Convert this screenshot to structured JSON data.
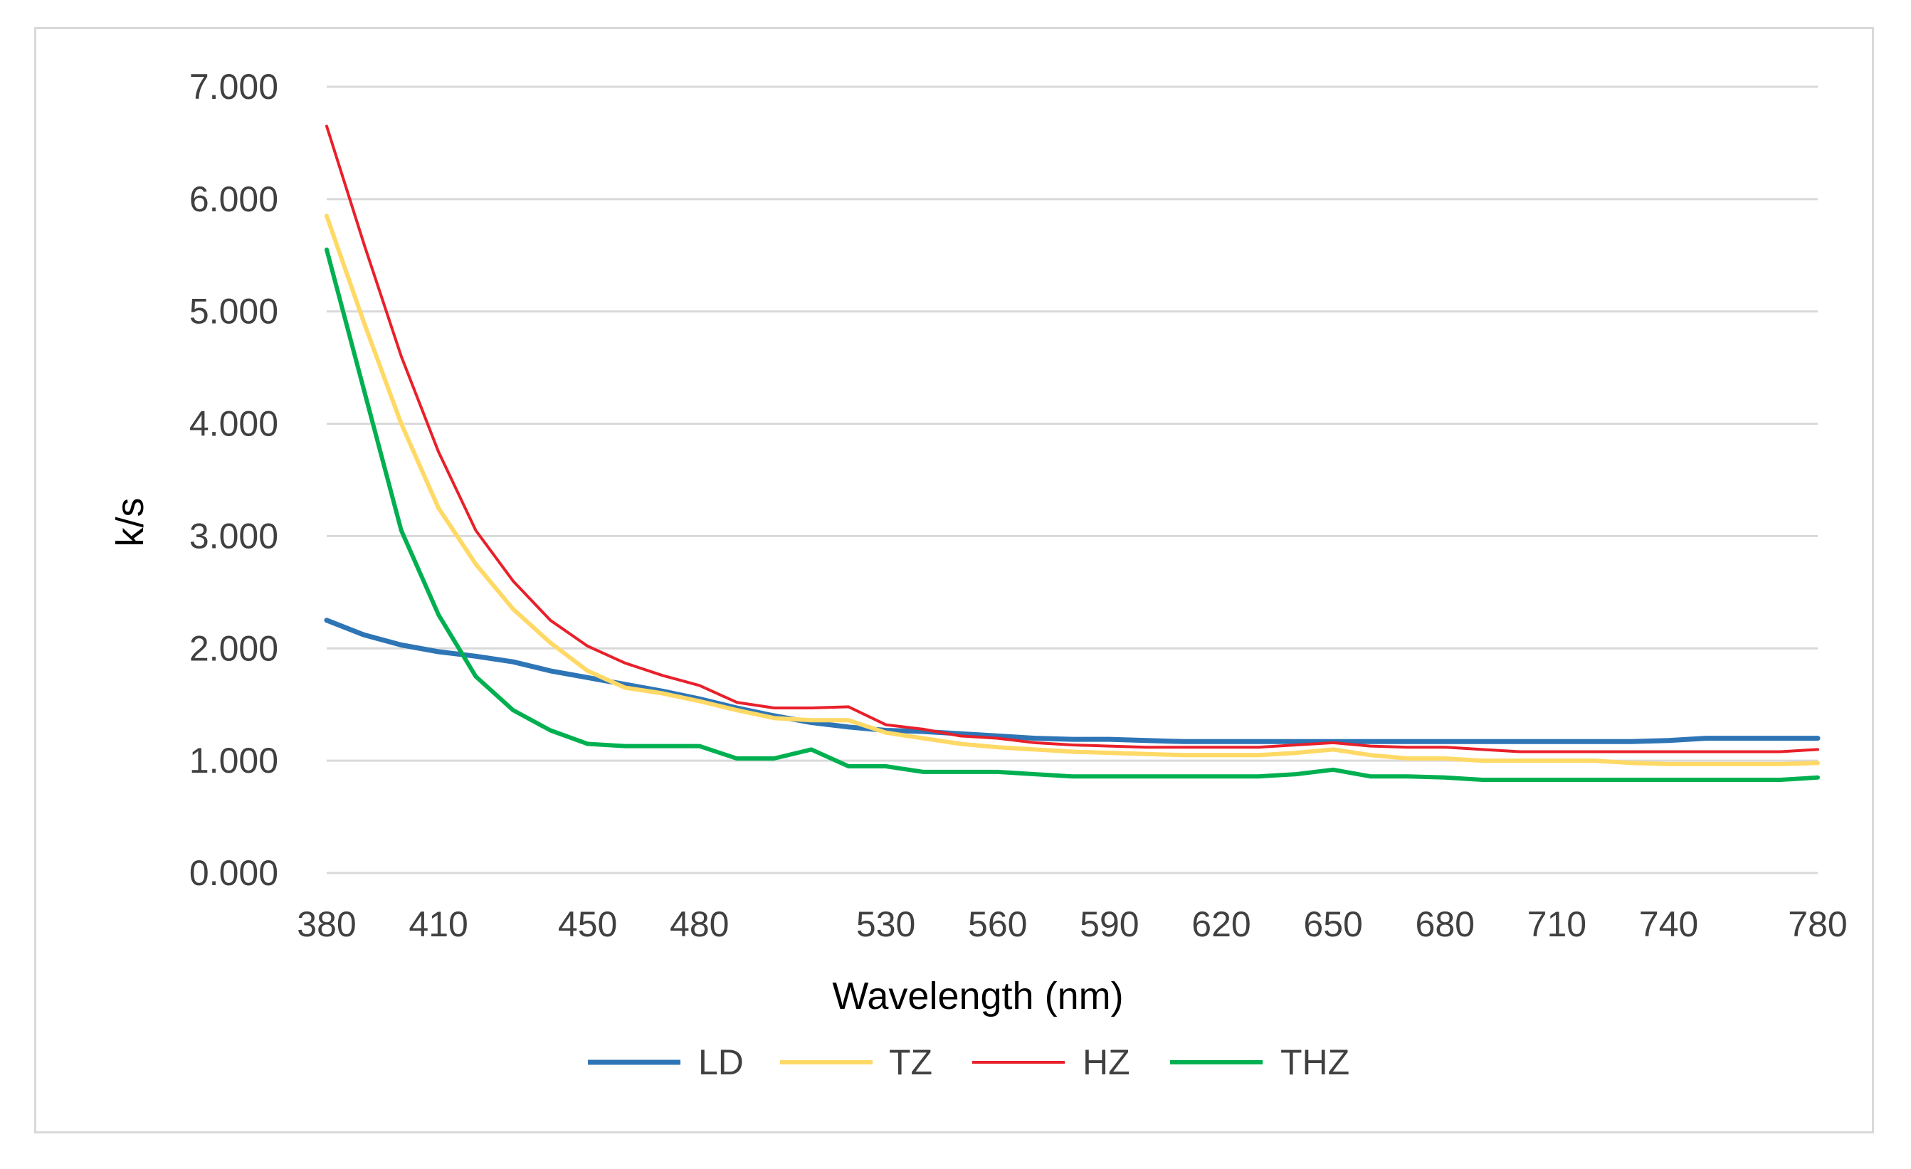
{
  "chart_data": {
    "type": "line",
    "title": "",
    "xlabel": "Wavelength (nm)",
    "ylabel": "k/s",
    "xlim": [
      380,
      780
    ],
    "ylim": [
      0,
      7
    ],
    "x_ticks": [
      380,
      410,
      450,
      480,
      530,
      560,
      590,
      620,
      650,
      680,
      710,
      740,
      780
    ],
    "y_ticks": [
      "0.000",
      "1.000",
      "2.000",
      "3.000",
      "4.000",
      "5.000",
      "6.000",
      "7.000"
    ],
    "grid": "horizontal",
    "legend_position": "bottom",
    "series": [
      {
        "name": "LD",
        "color": "#2e75b6",
        "x": [
          380,
          390,
          400,
          410,
          420,
          430,
          440,
          450,
          460,
          470,
          480,
          490,
          500,
          510,
          520,
          530,
          540,
          550,
          560,
          570,
          580,
          590,
          600,
          610,
          620,
          630,
          640,
          650,
          660,
          670,
          680,
          690,
          700,
          710,
          720,
          730,
          740,
          750,
          760,
          770,
          780
        ],
        "values": [
          2.25,
          2.12,
          2.03,
          1.97,
          1.93,
          1.88,
          1.8,
          1.74,
          1.68,
          1.62,
          1.55,
          1.47,
          1.4,
          1.34,
          1.3,
          1.27,
          1.26,
          1.24,
          1.22,
          1.2,
          1.19,
          1.19,
          1.18,
          1.17,
          1.17,
          1.17,
          1.17,
          1.17,
          1.17,
          1.17,
          1.17,
          1.17,
          1.17,
          1.17,
          1.17,
          1.17,
          1.18,
          1.2,
          1.2,
          1.2,
          1.2
        ]
      },
      {
        "name": "TZ",
        "color": "#ffd966",
        "x": [
          380,
          390,
          400,
          410,
          420,
          430,
          440,
          450,
          460,
          470,
          480,
          490,
          500,
          510,
          520,
          530,
          540,
          550,
          560,
          570,
          580,
          590,
          600,
          610,
          620,
          630,
          640,
          650,
          660,
          670,
          680,
          690,
          700,
          710,
          720,
          730,
          740,
          750,
          760,
          770,
          780
        ],
        "values": [
          5.85,
          4.9,
          4.0,
          3.25,
          2.75,
          2.35,
          2.05,
          1.8,
          1.65,
          1.6,
          1.53,
          1.45,
          1.38,
          1.36,
          1.36,
          1.25,
          1.2,
          1.15,
          1.12,
          1.1,
          1.08,
          1.07,
          1.06,
          1.05,
          1.05,
          1.05,
          1.07,
          1.1,
          1.05,
          1.02,
          1.02,
          1.0,
          1.0,
          1.0,
          1.0,
          0.98,
          0.97,
          0.97,
          0.97,
          0.97,
          0.98
        ]
      },
      {
        "name": "HZ",
        "color": "#e8202a",
        "x": [
          380,
          390,
          400,
          410,
          420,
          430,
          440,
          450,
          460,
          470,
          480,
          490,
          500,
          510,
          520,
          530,
          540,
          550,
          560,
          570,
          580,
          590,
          600,
          610,
          620,
          630,
          640,
          650,
          660,
          670,
          680,
          690,
          700,
          710,
          720,
          730,
          740,
          750,
          760,
          770,
          780
        ],
        "values": [
          6.65,
          5.6,
          4.6,
          3.75,
          3.05,
          2.6,
          2.25,
          2.02,
          1.87,
          1.76,
          1.67,
          1.52,
          1.47,
          1.47,
          1.48,
          1.32,
          1.28,
          1.22,
          1.2,
          1.16,
          1.14,
          1.13,
          1.12,
          1.12,
          1.12,
          1.12,
          1.14,
          1.16,
          1.13,
          1.12,
          1.12,
          1.1,
          1.08,
          1.08,
          1.08,
          1.08,
          1.08,
          1.08,
          1.08,
          1.08,
          1.1
        ]
      },
      {
        "name": "THZ",
        "color": "#00b050",
        "x": [
          380,
          390,
          400,
          410,
          420,
          430,
          440,
          450,
          460,
          470,
          480,
          490,
          500,
          510,
          520,
          530,
          540,
          550,
          560,
          570,
          580,
          590,
          600,
          610,
          620,
          630,
          640,
          650,
          660,
          670,
          680,
          690,
          700,
          710,
          720,
          730,
          740,
          750,
          760,
          770,
          780
        ],
        "values": [
          5.55,
          4.3,
          3.05,
          2.3,
          1.75,
          1.45,
          1.27,
          1.15,
          1.13,
          1.13,
          1.13,
          1.02,
          1.02,
          1.1,
          0.95,
          0.95,
          0.9,
          0.9,
          0.9,
          0.88,
          0.86,
          0.86,
          0.86,
          0.86,
          0.86,
          0.86,
          0.88,
          0.92,
          0.86,
          0.86,
          0.85,
          0.83,
          0.83,
          0.83,
          0.83,
          0.83,
          0.83,
          0.83,
          0.83,
          0.83,
          0.85
        ]
      }
    ]
  }
}
